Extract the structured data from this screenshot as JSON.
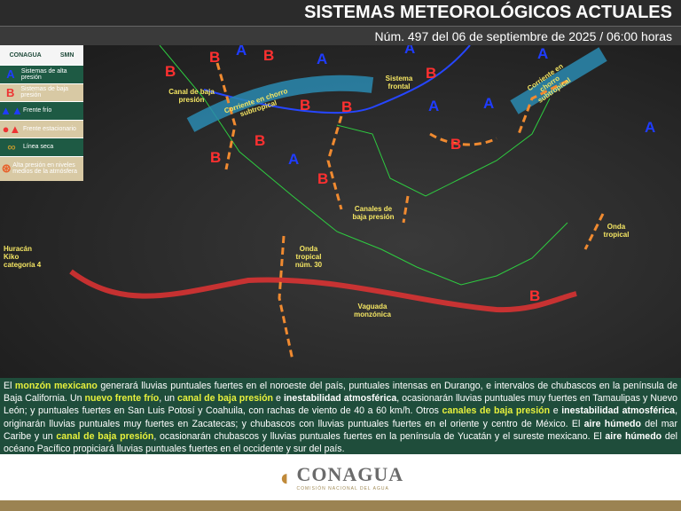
{
  "header": {
    "title": "SISTEMAS METEOROLÓGICOS ACTUALES",
    "subtitle": "Núm. 497 del 06 de septiembre de 2025 / 06:00 horas"
  },
  "legend": {
    "logos": [
      "CONAGUA",
      "SMN"
    ],
    "items": [
      {
        "icon": "high-pressure-A",
        "label": "Sistemas de alta presión"
      },
      {
        "icon": "low-pressure-B",
        "label": "Sistemas de baja presión"
      },
      {
        "icon": "cold-front",
        "label": "Frente frío"
      },
      {
        "icon": "stationary-front",
        "label": "Frente estacionario"
      },
      {
        "icon": "dry-line",
        "label": "Línea seca"
      },
      {
        "icon": "upper-high",
        "label": "Alta presión en niveles medios de la atmósfera"
      }
    ]
  },
  "map": {
    "labels": {
      "canal_baja": "Canal de baja presión",
      "corriente_oeste": "Corriente en chorro subtropical",
      "sistema_frontal": "Sistema frontal",
      "corriente_este": "Corriente en chorro subtropical",
      "canales": "Canales de baja presión",
      "huracan": "Huracán Kiko categoría 4",
      "onda30": "Onda tropical núm. 30",
      "vaguada": "Vaguada monzónica",
      "onda_este": "Onda tropical"
    },
    "colors": {
      "high": "#1f3cff",
      "low": "#ff3030",
      "label": "#f5e663"
    }
  },
  "bulletin": {
    "segments": [
      {
        "t": "El "
      },
      {
        "t": "monzón mexicano",
        "s": "hl"
      },
      {
        "t": " generará lluvias puntuales fuertes en el noroeste del país, puntuales intensas en Durango, e intervalos de chubascos en la península de Baja California. Un "
      },
      {
        "t": "nuevo frente frío",
        "s": "hl"
      },
      {
        "t": ", un "
      },
      {
        "t": "canal de baja presión",
        "s": "hl"
      },
      {
        "t": " e "
      },
      {
        "t": "inestabilidad atmosférica",
        "s": "b"
      },
      {
        "t": ", ocasionarán lluvias puntuales muy fuertes en Tamaulipas y Nuevo León; y puntuales fuertes en San Luis Potosí y Coahuila, con rachas de viento de 40 a 60 km/h. Otros "
      },
      {
        "t": "canales de baja presión",
        "s": "hl"
      },
      {
        "t": " e "
      },
      {
        "t": "inestabilidad atmosférica",
        "s": "b"
      },
      {
        "t": ", originarán lluvias puntuales muy fuertes en Zacatecas; y chubascos con lluvias puntuales fuertes en el oriente y centro de México. El "
      },
      {
        "t": "aire húmedo",
        "s": "b"
      },
      {
        "t": " del mar Caribe y un "
      },
      {
        "t": "canal de baja presión",
        "s": "hl"
      },
      {
        "t": ", ocasionarán chubascos y lluvias puntuales fuertes en la península de Yucatán y el sureste mexicano. El "
      },
      {
        "t": "aire húmedo",
        "s": "b"
      },
      {
        "t": " del océano Pacífico propiciará lluvias puntuales fuertes en el occidente y sur del país."
      }
    ]
  },
  "footer": {
    "logo": "CONAGUA",
    "logo_sub": "COMISIÓN NACIONAL DEL AGUA"
  }
}
